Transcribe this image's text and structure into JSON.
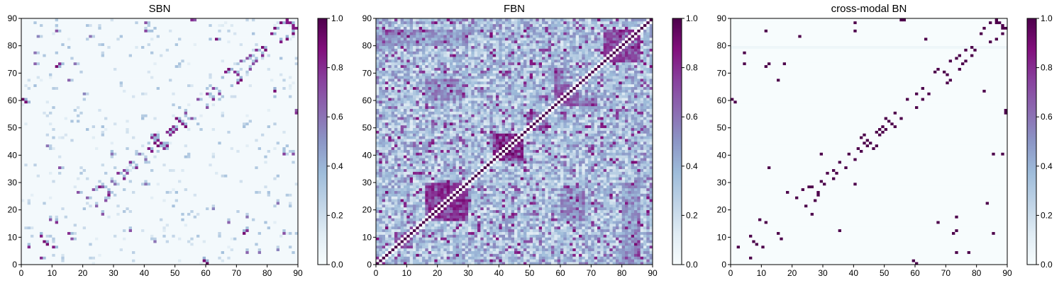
{
  "colormap": {
    "name": "BuPu",
    "stops": [
      "#f7fcfd",
      "#e0ecf4",
      "#bfd3e6",
      "#9ebcda",
      "#8c96c6",
      "#8c6bb1",
      "#88419d",
      "#810f7c",
      "#4d004b"
    ]
  },
  "colorbar_ticks": [
    "0.0",
    "0.2",
    "0.4",
    "0.6",
    "0.8",
    "1.0"
  ],
  "chart_data": [
    {
      "type": "heatmap",
      "title": "SBN",
      "matrix_size": 90,
      "xlim": [
        0,
        90
      ],
      "ylim": [
        0,
        90
      ],
      "x_ticks": [
        "0",
        "10",
        "20",
        "30",
        "40",
        "50",
        "60",
        "70",
        "80",
        "90"
      ],
      "y_ticks": [
        "0",
        "10",
        "20",
        "30",
        "40",
        "50",
        "60",
        "70",
        "80",
        "90"
      ],
      "clim": [
        0.0,
        1.0
      ],
      "colorbar": true,
      "symmetric": true,
      "background_level": 0.02,
      "strong_pairs": [
        [
          0,
          60,
          0.95
        ],
        [
          1,
          59,
          0.9
        ],
        [
          6,
          2,
          0.8
        ],
        [
          7,
          8,
          0.9
        ],
        [
          10,
          6,
          0.85
        ],
        [
          11,
          72,
          0.9
        ],
        [
          12,
          73,
          0.8
        ],
        [
          15,
          11,
          0.8
        ],
        [
          16,
          9,
          0.7
        ],
        [
          18,
          26,
          0.7
        ],
        [
          21,
          24,
          0.65
        ],
        [
          23,
          27,
          0.7
        ],
        [
          25,
          28,
          0.85
        ],
        [
          26,
          28,
          0.75
        ],
        [
          28,
          26,
          0.7
        ],
        [
          29,
          30,
          0.6
        ],
        [
          30,
          29,
          0.6
        ],
        [
          31,
          33,
          0.8
        ],
        [
          33,
          34,
          0.75
        ],
        [
          35,
          37,
          0.8
        ],
        [
          38,
          40,
          0.6
        ],
        [
          41,
          42,
          0.85
        ],
        [
          42,
          46,
          0.9
        ],
        [
          43,
          47,
          0.85
        ],
        [
          44,
          43,
          0.9
        ],
        [
          45,
          44,
          0.85
        ],
        [
          46,
          42,
          0.8
        ],
        [
          47,
          48,
          0.8
        ],
        [
          48,
          49,
          0.85
        ],
        [
          49,
          50,
          0.8
        ],
        [
          50,
          53,
          0.9
        ],
        [
          51,
          52,
          0.8
        ],
        [
          52,
          51,
          0.85
        ],
        [
          55,
          53,
          0.7
        ],
        [
          57,
          60,
          0.7
        ],
        [
          60,
          62,
          0.8
        ],
        [
          62,
          64,
          0.75
        ],
        [
          63,
          82,
          0.9
        ],
        [
          66,
          70,
          0.85
        ],
        [
          67,
          71,
          0.9
        ],
        [
          69,
          70,
          0.8
        ],
        [
          71,
          74,
          0.7
        ],
        [
          73,
          75,
          0.7
        ],
        [
          74,
          76,
          0.75
        ],
        [
          76,
          78,
          0.8
        ],
        [
          78,
          79,
          0.9
        ],
        [
          81,
          84,
          0.85
        ],
        [
          82,
          86,
          0.9
        ],
        [
          84,
          88,
          0.9
        ],
        [
          86,
          89,
          0.85
        ],
        [
          87,
          88,
          0.85
        ],
        [
          88,
          86,
          0.85
        ],
        [
          89,
          55,
          0.8
        ],
        [
          12,
          35,
          0.7
        ],
        [
          15,
          67,
          0.65
        ],
        [
          17,
          73,
          0.6
        ],
        [
          22,
          83,
          0.6
        ],
        [
          4,
          73,
          0.65
        ],
        [
          4,
          77,
          0.6
        ],
        [
          29,
          40,
          0.6
        ],
        [
          11,
          85,
          0.7
        ],
        [
          56,
          89,
          0.7
        ],
        [
          40,
          85,
          0.75
        ],
        [
          40,
          88,
          0.7
        ],
        [
          8,
          43,
          0.6
        ],
        [
          5,
          83,
          0.55
        ],
        [
          20,
          62,
          0.55
        ]
      ]
    },
    {
      "type": "heatmap",
      "title": "FBN",
      "matrix_size": 90,
      "xlim": [
        0,
        90
      ],
      "ylim": [
        0,
        90
      ],
      "x_ticks": [
        "0",
        "10",
        "20",
        "30",
        "40",
        "50",
        "60",
        "70",
        "80",
        "90"
      ],
      "y_ticks": [
        "0",
        "10",
        "20",
        "30",
        "40",
        "50",
        "60",
        "70",
        "80",
        "90"
      ],
      "clim": [
        0.0,
        1.0
      ],
      "colorbar": true,
      "symmetric": true,
      "background_level": 0.3,
      "diagonal_value": 1.0,
      "strong_blocks": [
        [
          16,
          30,
          16,
          30,
          0.75
        ],
        [
          6,
          12,
          6,
          12,
          0.65
        ],
        [
          38,
          48,
          38,
          48,
          0.8
        ],
        [
          49,
          56,
          49,
          56,
          0.7
        ],
        [
          58,
          66,
          58,
          66,
          0.65
        ],
        [
          66,
          72,
          56,
          62,
          0.55
        ],
        [
          74,
          86,
          74,
          86,
          0.7
        ],
        [
          80,
          86,
          0,
          30,
          0.5
        ],
        [
          60,
          68,
          16,
          28,
          0.55
        ],
        [
          0,
          6,
          78,
          84,
          0.5
        ],
        [
          40,
          44,
          40,
          44,
          0.85
        ]
      ]
    },
    {
      "type": "heatmap",
      "title": "cross-modal BN",
      "matrix_size": 90,
      "xlim": [
        0,
        90
      ],
      "ylim": [
        0,
        90
      ],
      "x_ticks": [
        "0",
        "10",
        "20",
        "30",
        "40",
        "50",
        "60",
        "70",
        "80",
        "90"
      ],
      "y_ticks": [
        "0",
        "10",
        "20",
        "30",
        "40",
        "50",
        "60",
        "70",
        "80",
        "90"
      ],
      "clim": [
        0.0,
        1.0
      ],
      "colorbar": true,
      "symmetric": true,
      "background_level": 0.0,
      "strong_pairs": [
        [
          0,
          60,
          1.0
        ],
        [
          1,
          59,
          1.0
        ],
        [
          6,
          2,
          1.0
        ],
        [
          7,
          8,
          1.0
        ],
        [
          10,
          6,
          1.0
        ],
        [
          11,
          72,
          1.0
        ],
        [
          12,
          73,
          1.0
        ],
        [
          15,
          11,
          1.0
        ],
        [
          16,
          9,
          1.0
        ],
        [
          18,
          26,
          1.0
        ],
        [
          21,
          24,
          1.0
        ],
        [
          23,
          27,
          1.0
        ],
        [
          25,
          28,
          1.0
        ],
        [
          26,
          28,
          1.0
        ],
        [
          29,
          30,
          1.0
        ],
        [
          31,
          33,
          1.0
        ],
        [
          33,
          34,
          1.0
        ],
        [
          35,
          37,
          1.0
        ],
        [
          38,
          40,
          1.0
        ],
        [
          41,
          42,
          1.0
        ],
        [
          42,
          46,
          1.0
        ],
        [
          43,
          47,
          1.0
        ],
        [
          44,
          43,
          1.0
        ],
        [
          45,
          44,
          1.0
        ],
        [
          46,
          42,
          1.0
        ],
        [
          47,
          48,
          1.0
        ],
        [
          48,
          49,
          1.0
        ],
        [
          49,
          50,
          1.0
        ],
        [
          50,
          53,
          1.0
        ],
        [
          51,
          52,
          1.0
        ],
        [
          52,
          51,
          1.0
        ],
        [
          55,
          53,
          1.0
        ],
        [
          57,
          60,
          1.0
        ],
        [
          60,
          62,
          1.0
        ],
        [
          62,
          64,
          1.0
        ],
        [
          63,
          82,
          1.0
        ],
        [
          66,
          70,
          1.0
        ],
        [
          67,
          71,
          1.0
        ],
        [
          69,
          70,
          1.0
        ],
        [
          71,
          74,
          1.0
        ],
        [
          73,
          75,
          1.0
        ],
        [
          74,
          76,
          1.0
        ],
        [
          76,
          78,
          1.0
        ],
        [
          78,
          79,
          1.0
        ],
        [
          81,
          84,
          1.0
        ],
        [
          82,
          86,
          1.0
        ],
        [
          84,
          88,
          1.0
        ],
        [
          86,
          89,
          1.0
        ],
        [
          87,
          88,
          1.0
        ],
        [
          88,
          86,
          1.0
        ],
        [
          89,
          55,
          1.0
        ],
        [
          12,
          35,
          1.0
        ],
        [
          15,
          67,
          1.0
        ],
        [
          17,
          73,
          1.0
        ],
        [
          22,
          83,
          1.0
        ],
        [
          4,
          73,
          1.0
        ],
        [
          4,
          77,
          1.0
        ],
        [
          29,
          40,
          1.0
        ],
        [
          11,
          85,
          1.0
        ],
        [
          56,
          89,
          1.0
        ],
        [
          40,
          85,
          1.0
        ],
        [
          40,
          88,
          1.0
        ]
      ],
      "faint_row": 79
    }
  ]
}
